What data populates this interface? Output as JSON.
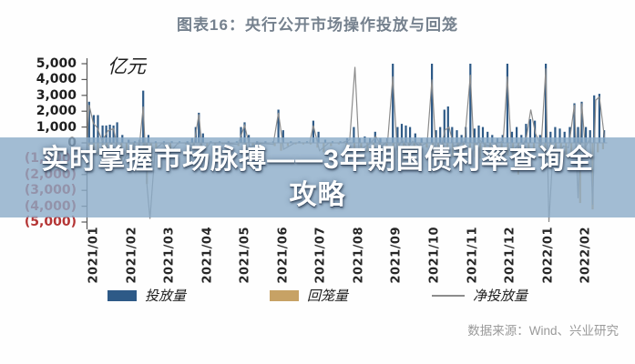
{
  "header": {
    "title": "图表16：央行公开市场操作投放与回笼"
  },
  "overlay": {
    "text": "实时掌握市场脉搏——3年期国债利率查询全攻略",
    "lines": [
      "实时掌握市场脉搏——3年期国债利率查询全",
      "攻略"
    ],
    "band_color": "rgba(139,171,200,0.80)"
  },
  "footer": {
    "source": "数据来源：Wind、兴业研究"
  },
  "colors": {
    "title": "#75818e",
    "axis": "#595959",
    "zero_line": "#8a8a8a",
    "negative_tick": "#b43535",
    "positive_tick": "#1f1f1f",
    "injection_bar": "#2e5a87",
    "withdrawal_bar": "#c7a265",
    "net_line": "#8c8c8c"
  },
  "chart_data": {
    "type": "bar",
    "title": "央行公开市场操作投放与回笼",
    "unit_label": "亿元",
    "ylim": [
      -5000,
      5000
    ],
    "grid": false,
    "legend_position": "bottom",
    "x_axis_note": "daily operations; x given as fraction of span 2021/01 - 2022/02",
    "y_ticks": [
      {
        "label": "5,000",
        "value": 5000
      },
      {
        "label": "4,000",
        "value": 4000
      },
      {
        "label": "3,000",
        "value": 3000
      },
      {
        "label": "2,000",
        "value": 2000
      },
      {
        "label": "1,000",
        "value": 1000
      },
      {
        "label": "0",
        "value": 0
      },
      {
        "label": "(1,000)",
        "value": -1000
      },
      {
        "label": "(2,000)",
        "value": -2000
      },
      {
        "label": "(3,000)",
        "value": -3000
      },
      {
        "label": "(4,000)",
        "value": -4000
      },
      {
        "label": "(5,000)",
        "value": -5000
      }
    ],
    "x_labels": [
      "2021/01",
      "2021/02",
      "2021/03",
      "2021/04",
      "2021/05",
      "2021/06",
      "2021/07",
      "2021/08",
      "2021/09",
      "2021/10",
      "2021/11",
      "2021/12",
      "2022/01",
      "2022/02"
    ],
    "series": [
      {
        "name": "投放量",
        "type": "bar",
        "color": "#2e5a87",
        "points": [
          [
            0.004,
            2600
          ],
          [
            0.013,
            1750
          ],
          [
            0.021,
            1750
          ],
          [
            0.03,
            1100
          ],
          [
            0.037,
            1100
          ],
          [
            0.044,
            1150
          ],
          [
            0.051,
            1100
          ],
          [
            0.058,
            1300
          ],
          [
            0.068,
            500
          ],
          [
            0.08,
            200
          ],
          [
            0.092,
            100
          ],
          [
            0.101,
            200
          ],
          [
            0.108,
            3300
          ],
          [
            0.118,
            500
          ],
          [
            0.132,
            100
          ],
          [
            0.148,
            100
          ],
          [
            0.163,
            100
          ],
          [
            0.178,
            100
          ],
          [
            0.193,
            100
          ],
          [
            0.202,
            300
          ],
          [
            0.209,
            1000
          ],
          [
            0.215,
            1900
          ],
          [
            0.223,
            600
          ],
          [
            0.238,
            100
          ],
          [
            0.255,
            100
          ],
          [
            0.272,
            100
          ],
          [
            0.288,
            100
          ],
          [
            0.296,
            1000
          ],
          [
            0.303,
            1300
          ],
          [
            0.311,
            500
          ],
          [
            0.327,
            100
          ],
          [
            0.343,
            100
          ],
          [
            0.358,
            100
          ],
          [
            0.368,
            2100
          ],
          [
            0.377,
            800
          ],
          [
            0.392,
            100
          ],
          [
            0.408,
            100
          ],
          [
            0.423,
            100
          ],
          [
            0.435,
            1400
          ],
          [
            0.445,
            700
          ],
          [
            0.458,
            200
          ],
          [
            0.472,
            100
          ],
          [
            0.487,
            100
          ],
          [
            0.5,
            300
          ],
          [
            0.513,
            1000
          ],
          [
            0.524,
            300
          ],
          [
            0.534,
            400
          ],
          [
            0.544,
            300
          ],
          [
            0.554,
            700
          ],
          [
            0.564,
            300
          ],
          [
            0.577,
            300
          ],
          [
            0.588,
            5000
          ],
          [
            0.597,
            1000
          ],
          [
            0.605,
            1200
          ],
          [
            0.613,
            1100
          ],
          [
            0.621,
            1000
          ],
          [
            0.631,
            600
          ],
          [
            0.643,
            300
          ],
          [
            0.654,
            300
          ],
          [
            0.663,
            5000
          ],
          [
            0.671,
            800
          ],
          [
            0.679,
            1000
          ],
          [
            0.687,
            2100
          ],
          [
            0.694,
            2300
          ],
          [
            0.702,
            1000
          ],
          [
            0.711,
            800
          ],
          [
            0.72,
            500
          ],
          [
            0.728,
            1000
          ],
          [
            0.737,
            5000
          ],
          [
            0.745,
            900
          ],
          [
            0.753,
            1100
          ],
          [
            0.761,
            1000
          ],
          [
            0.77,
            700
          ],
          [
            0.779,
            500
          ],
          [
            0.789,
            300
          ],
          [
            0.799,
            500
          ],
          [
            0.808,
            5000
          ],
          [
            0.817,
            700
          ],
          [
            0.826,
            1000
          ],
          [
            0.835,
            500
          ],
          [
            0.844,
            1200
          ],
          [
            0.852,
            1500
          ],
          [
            0.861,
            1400
          ],
          [
            0.871,
            500
          ],
          [
            0.882,
            5000
          ],
          [
            0.891,
            700
          ],
          [
            0.9,
            1000
          ],
          [
            0.909,
            900
          ],
          [
            0.918,
            700
          ],
          [
            0.928,
            1000
          ],
          [
            0.937,
            2500
          ],
          [
            0.944,
            1000
          ],
          [
            0.951,
            2600
          ],
          [
            0.959,
            1000
          ],
          [
            0.967,
            800
          ],
          [
            0.975,
            3000
          ],
          [
            0.985,
            3100
          ],
          [
            0.994,
            800
          ]
        ]
      },
      {
        "name": "回笼量",
        "type": "bar",
        "color": "#c7a265",
        "points": [
          [
            0.004,
            -200
          ],
          [
            0.013,
            -500
          ],
          [
            0.021,
            -800
          ],
          [
            0.03,
            -1000
          ],
          [
            0.038,
            -400
          ],
          [
            0.047,
            -300
          ],
          [
            0.057,
            -200
          ],
          [
            0.066,
            -1500
          ],
          [
            0.076,
            -800
          ],
          [
            0.09,
            -200
          ],
          [
            0.1,
            -500
          ],
          [
            0.109,
            -1000
          ],
          [
            0.115,
            -2600
          ],
          [
            0.123,
            -1200
          ],
          [
            0.133,
            -400
          ],
          [
            0.147,
            -100
          ],
          [
            0.16,
            -700
          ],
          [
            0.175,
            -100
          ],
          [
            0.19,
            -100
          ],
          [
            0.205,
            -300
          ],
          [
            0.219,
            -800
          ],
          [
            0.231,
            -300
          ],
          [
            0.246,
            -100
          ],
          [
            0.261,
            -100
          ],
          [
            0.276,
            -100
          ],
          [
            0.291,
            -200
          ],
          [
            0.305,
            -400
          ],
          [
            0.319,
            -200
          ],
          [
            0.333,
            -100
          ],
          [
            0.347,
            -100
          ],
          [
            0.361,
            -200
          ],
          [
            0.373,
            -500
          ],
          [
            0.386,
            -200
          ],
          [
            0.401,
            -100
          ],
          [
            0.416,
            -100
          ],
          [
            0.43,
            -100
          ],
          [
            0.443,
            -300
          ],
          [
            0.455,
            -600
          ],
          [
            0.469,
            -200
          ],
          [
            0.484,
            -100
          ],
          [
            0.499,
            -200
          ],
          [
            0.514,
            -400
          ],
          [
            0.527,
            -300
          ],
          [
            0.539,
            -600
          ],
          [
            0.551,
            -300
          ],
          [
            0.563,
            -400
          ],
          [
            0.576,
            -200
          ],
          [
            0.589,
            -800
          ],
          [
            0.599,
            -1000
          ],
          [
            0.609,
            -1200
          ],
          [
            0.619,
            -900
          ],
          [
            0.629,
            -700
          ],
          [
            0.641,
            -400
          ],
          [
            0.653,
            -300
          ],
          [
            0.665,
            -1000
          ],
          [
            0.675,
            -1200
          ],
          [
            0.684,
            -1500
          ],
          [
            0.693,
            -1100
          ],
          [
            0.703,
            -900
          ],
          [
            0.713,
            -600
          ],
          [
            0.724,
            -400
          ],
          [
            0.736,
            -700
          ],
          [
            0.746,
            -900
          ],
          [
            0.756,
            -1000
          ],
          [
            0.765,
            -800
          ],
          [
            0.775,
            -500
          ],
          [
            0.786,
            -300
          ],
          [
            0.797,
            -400
          ],
          [
            0.809,
            -800
          ],
          [
            0.819,
            -1000
          ],
          [
            0.829,
            -2000
          ],
          [
            0.839,
            -1500
          ],
          [
            0.849,
            -800
          ],
          [
            0.859,
            -500
          ],
          [
            0.87,
            -300
          ],
          [
            0.881,
            -1000
          ],
          [
            0.891,
            -1200
          ],
          [
            0.901,
            -1500
          ],
          [
            0.911,
            -1000
          ],
          [
            0.921,
            -800
          ],
          [
            0.931,
            -600
          ],
          [
            0.948,
            -3800
          ],
          [
            0.958,
            -800
          ],
          [
            0.972,
            -4200
          ],
          [
            0.982,
            -600
          ],
          [
            0.992,
            -400
          ]
        ]
      },
      {
        "name": "净投放量",
        "type": "line",
        "color": "#8c8c8c",
        "points": [
          [
            0,
            100
          ],
          [
            0.004,
            2400
          ],
          [
            0.012,
            1250
          ],
          [
            0.02,
            950
          ],
          [
            0.029,
            100
          ],
          [
            0.04,
            750
          ],
          [
            0.051,
            900
          ],
          [
            0.066,
            -1500
          ],
          [
            0.078,
            -600
          ],
          [
            0.09,
            -100
          ],
          [
            0.1,
            -400
          ],
          [
            0.108,
            2300
          ],
          [
            0.115,
            -2600
          ],
          [
            0.121,
            -4800
          ],
          [
            0.131,
            -400
          ],
          [
            0.145,
            0
          ],
          [
            0.16,
            -600
          ],
          [
            0.175,
            0
          ],
          [
            0.19,
            0
          ],
          [
            0.205,
            -200
          ],
          [
            0.215,
            1800
          ],
          [
            0.222,
            -700
          ],
          [
            0.237,
            0
          ],
          [
            0.26,
            0
          ],
          [
            0.29,
            -100
          ],
          [
            0.303,
            1100
          ],
          [
            0.313,
            -300
          ],
          [
            0.33,
            0
          ],
          [
            0.358,
            -100
          ],
          [
            0.368,
            1900
          ],
          [
            0.378,
            -400
          ],
          [
            0.4,
            0
          ],
          [
            0.428,
            0
          ],
          [
            0.435,
            1100
          ],
          [
            0.447,
            -500
          ],
          [
            0.465,
            0
          ],
          [
            0.49,
            0
          ],
          [
            0.505,
            200
          ],
          [
            0.515,
            4800
          ],
          [
            0.523,
            -500
          ],
          [
            0.536,
            -200
          ],
          [
            0.546,
            0
          ],
          [
            0.555,
            400
          ],
          [
            0.566,
            -200
          ],
          [
            0.578,
            100
          ],
          [
            0.588,
            4200
          ],
          [
            0.596,
            -400
          ],
          [
            0.606,
            200
          ],
          [
            0.616,
            -300
          ],
          [
            0.626,
            100
          ],
          [
            0.64,
            -200
          ],
          [
            0.654,
            0
          ],
          [
            0.663,
            4000
          ],
          [
            0.671,
            -600
          ],
          [
            0.681,
            -300
          ],
          [
            0.688,
            800
          ],
          [
            0.696,
            1000
          ],
          [
            0.705,
            -200
          ],
          [
            0.716,
            -100
          ],
          [
            0.726,
            100
          ],
          [
            0.737,
            4300
          ],
          [
            0.744,
            -500
          ],
          [
            0.754,
            200
          ],
          [
            0.764,
            -100
          ],
          [
            0.776,
            -200
          ],
          [
            0.79,
            0
          ],
          [
            0.8,
            100
          ],
          [
            0.808,
            4200
          ],
          [
            0.816,
            -600
          ],
          [
            0.827,
            -200
          ],
          [
            0.836,
            -300
          ],
          [
            0.845,
            400
          ],
          [
            0.853,
            2100
          ],
          [
            0.862,
            600
          ],
          [
            0.873,
            -200
          ],
          [
            0.882,
            4700
          ],
          [
            0.888,
            -5000
          ],
          [
            0.896,
            -400
          ],
          [
            0.906,
            -700
          ],
          [
            0.916,
            -200
          ],
          [
            0.926,
            -300
          ],
          [
            0.937,
            2400
          ],
          [
            0.944,
            -3500
          ],
          [
            0.951,
            2500
          ],
          [
            0.958,
            -300
          ],
          [
            0.967,
            300
          ],
          [
            0.972,
            -3900
          ],
          [
            0.978,
            2700
          ],
          [
            0.985,
            2900
          ],
          [
            0.995,
            300
          ]
        ]
      }
    ],
    "legend": [
      {
        "label": "投放量",
        "shape": "rect",
        "color": "#2e5a87"
      },
      {
        "label": "回笼量",
        "shape": "rect",
        "color": "#c7a265"
      },
      {
        "label": "净投放量",
        "shape": "line",
        "color": "#8c8c8c"
      }
    ]
  }
}
